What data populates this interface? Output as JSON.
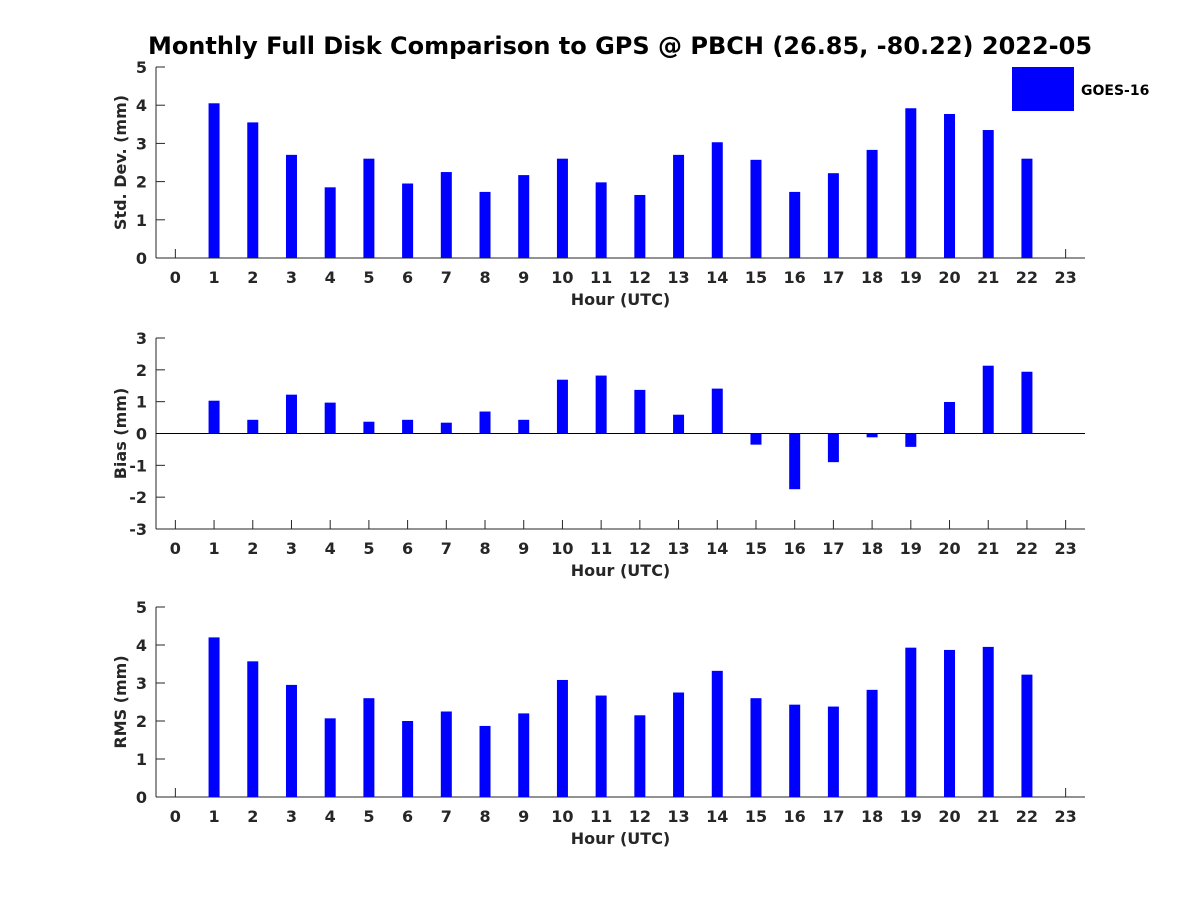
{
  "title": "Monthly Full Disk Comparison to GPS @ PBCH (26.85, -80.22) 2022-05",
  "legend": {
    "label": "GOES-16",
    "position": "top-right"
  },
  "colors": {
    "bar": "#0000ff",
    "axis": "#262626"
  },
  "chart_data": [
    {
      "type": "bar",
      "xlabel": "Hour (UTC)",
      "ylabel": "Std. Dev. (mm)",
      "xlim": [
        -0.5,
        23.5
      ],
      "ylim": [
        0,
        5
      ],
      "yticks": [
        0,
        1,
        2,
        3,
        4,
        5
      ],
      "categories": [
        0,
        1,
        2,
        3,
        4,
        5,
        6,
        7,
        8,
        9,
        10,
        11,
        12,
        13,
        14,
        15,
        16,
        17,
        18,
        19,
        20,
        21,
        22,
        23
      ],
      "series": [
        {
          "name": "GOES-16",
          "values": [
            null,
            4.05,
            3.55,
            2.7,
            1.85,
            2.6,
            1.95,
            2.25,
            1.73,
            2.17,
            2.6,
            1.98,
            1.65,
            2.7,
            3.03,
            2.57,
            1.73,
            2.22,
            2.83,
            3.92,
            3.77,
            3.35,
            2.6,
            null
          ]
        }
      ]
    },
    {
      "type": "bar",
      "xlabel": "Hour (UTC)",
      "ylabel": "Bias (mm)",
      "xlim": [
        -0.5,
        23.5
      ],
      "ylim": [
        -3,
        3
      ],
      "yticks": [
        -3,
        -2,
        -1,
        0,
        1,
        2,
        3
      ],
      "zero_line": true,
      "categories": [
        0,
        1,
        2,
        3,
        4,
        5,
        6,
        7,
        8,
        9,
        10,
        11,
        12,
        13,
        14,
        15,
        16,
        17,
        18,
        19,
        20,
        21,
        22,
        23
      ],
      "series": [
        {
          "name": "GOES-16",
          "values": [
            null,
            1.03,
            0.43,
            1.22,
            0.97,
            0.37,
            0.43,
            0.34,
            0.69,
            0.43,
            1.69,
            1.82,
            1.37,
            0.59,
            1.41,
            -0.35,
            -1.75,
            -0.9,
            -0.12,
            -0.42,
            0.99,
            2.13,
            1.94,
            null
          ]
        }
      ]
    },
    {
      "type": "bar",
      "xlabel": "Hour (UTC)",
      "ylabel": "RMS (mm)",
      "xlim": [
        -0.5,
        23.5
      ],
      "ylim": [
        0,
        5
      ],
      "yticks": [
        0,
        1,
        2,
        3,
        4,
        5
      ],
      "categories": [
        0,
        1,
        2,
        3,
        4,
        5,
        6,
        7,
        8,
        9,
        10,
        11,
        12,
        13,
        14,
        15,
        16,
        17,
        18,
        19,
        20,
        21,
        22,
        23
      ],
      "series": [
        {
          "name": "GOES-16",
          "values": [
            null,
            4.2,
            3.57,
            2.95,
            2.07,
            2.6,
            2.0,
            2.25,
            1.87,
            2.2,
            3.08,
            2.67,
            2.15,
            2.75,
            3.32,
            2.6,
            2.43,
            2.38,
            2.82,
            3.93,
            3.87,
            3.95,
            3.22,
            null
          ]
        }
      ]
    }
  ]
}
